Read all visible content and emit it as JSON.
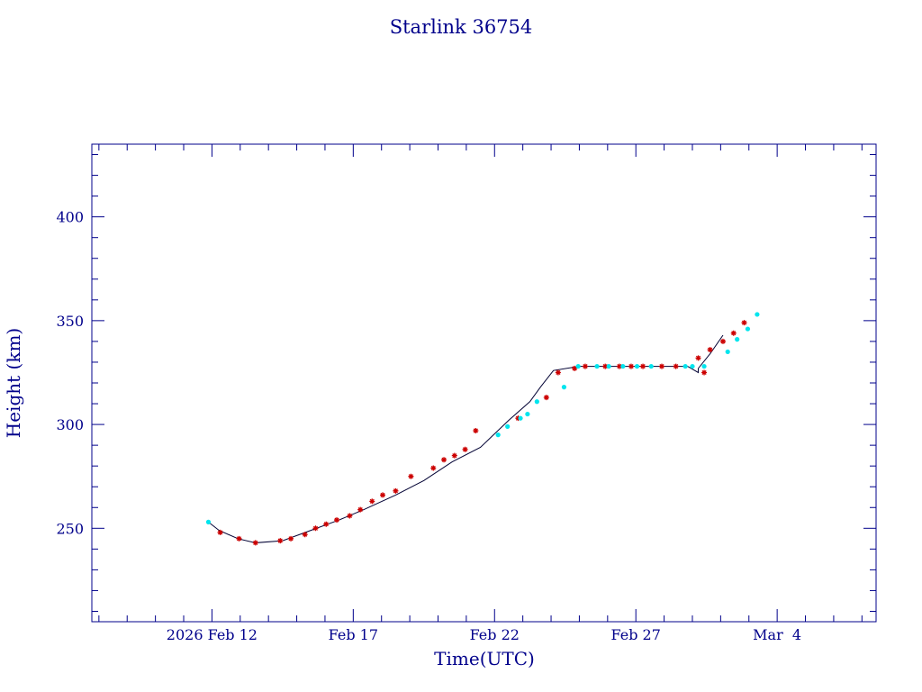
{
  "chart_data": {
    "type": "line",
    "title": "Starlink 36754",
    "xlabel": "Time(UTC)",
    "ylabel": "Height (km)",
    "x_is_date": true,
    "xlim": [
      "2026-02-07T18:00",
      "2026-03-07T12:00"
    ],
    "ylim": [
      205,
      435
    ],
    "x_tick_labels": [
      {
        "date": "2026-02-12",
        "label": "2026 Feb 12"
      },
      {
        "date": "2026-02-17",
        "label": "Feb 17"
      },
      {
        "date": "2026-02-22",
        "label": "Feb 22"
      },
      {
        "date": "2026-02-27",
        "label": "Feb 27"
      },
      {
        "date": "2026-03-04",
        "label": "Mar  4"
      }
    ],
    "y_ticks": [
      250,
      300,
      350,
      400
    ],
    "grid": false,
    "colors": {
      "axes": "#00008b",
      "line": "#000033",
      "marker_red": "#cc0000",
      "marker_cyan": "#00e5ee"
    },
    "series": [
      {
        "type": "line",
        "x": [
          "2026-02-11T21:00",
          "2026-02-12T06:00",
          "2026-02-12T22:00",
          "2026-02-13T13:00",
          "2026-02-14T12:00",
          "2026-02-15T12:00",
          "2026-02-16T12:00",
          "2026-02-17T09:00",
          "2026-02-18T12:00",
          "2026-02-19T12:00",
          "2026-02-20T12:00",
          "2026-02-21T12:00",
          "2026-02-22T12:00",
          "2026-02-23T06:00",
          "2026-02-23T15:00",
          "2026-02-24T02:00",
          "2026-02-25T00:00",
          "2026-02-26T00:00",
          "2026-02-27T00:00",
          "2026-02-28T00:00",
          "2026-02-28T20:00",
          "2026-02-29T05:00",
          "2026-03-01T05:00",
          "2026-03-01T15:00",
          "2026-03-02T02:00"
        ],
        "y": [
          253,
          249,
          245,
          243,
          244,
          249,
          254,
          259,
          266,
          273,
          282,
          289,
          302,
          311,
          318,
          326,
          328,
          328,
          328,
          328,
          328,
          325,
          327,
          334,
          343
        ]
      },
      {
        "type": "scatter",
        "marker": "red-star",
        "x": [
          "2026-02-12T07:00",
          "2026-02-12T23:00",
          "2026-02-13T13:00",
          "2026-02-14T10:00",
          "2026-02-14T19:00",
          "2026-02-15T07:00",
          "2026-02-15T16:00",
          "2026-02-16T01:00",
          "2026-02-16T10:00",
          "2026-02-16T21:00",
          "2026-02-17T06:00",
          "2026-02-17T16:00",
          "2026-02-18T01:00",
          "2026-02-18T12:00",
          "2026-02-19T01:00",
          "2026-02-19T20:00",
          "2026-02-20T05:00",
          "2026-02-20T14:00",
          "2026-02-20T23:00",
          "2026-02-21T08:00",
          "2026-02-22T20:00",
          "2026-02-23T20:00",
          "2026-02-24T06:00",
          "2026-02-24T20:00",
          "2026-02-25T05:00",
          "2026-02-25T22:00",
          "2026-02-26T10:00",
          "2026-02-26T20:00",
          "2026-02-27T06:00",
          "2026-02-27T22:00",
          "2026-02-28T10:00",
          "2026-02-29T10:00",
          "2026-03-01T05:00",
          "2026-03-01T15:00",
          "2026-03-02T02:00",
          "2026-03-02T11:00",
          "2026-03-02T20:00"
        ],
        "y": [
          248,
          245,
          243,
          244,
          245,
          247,
          250,
          252,
          254,
          256,
          259,
          263,
          266,
          268,
          275,
          279,
          283,
          285,
          288,
          297,
          303,
          313,
          325,
          327,
          328,
          328,
          328,
          328,
          328,
          328,
          328,
          325,
          332,
          336,
          340,
          344,
          349
        ]
      },
      {
        "type": "scatter",
        "marker": "cyan-dot",
        "x": [
          "2026-02-11T21:00",
          "2026-02-22T03:00",
          "2026-02-22T11:00",
          "2026-02-22T22:00",
          "2026-02-23T04:00",
          "2026-02-23T12:00",
          "2026-02-24T11:00",
          "2026-02-24T23:00",
          "2026-02-25T15:00",
          "2026-02-26T01:00",
          "2026-02-26T13:00",
          "2026-02-27T01:00",
          "2026-02-27T13:00",
          "2026-02-28T18:00",
          "2026-03-01T00:00",
          "2026-03-01T10:00",
          "2026-03-02T06:00",
          "2026-03-02T14:00",
          "2026-03-02T23:00",
          "2026-03-03T07:00"
        ],
        "y": [
          253,
          295,
          299,
          303,
          305,
          311,
          318,
          328,
          328,
          328,
          328,
          328,
          328,
          328,
          328,
          328,
          335,
          341,
          346,
          353
        ]
      }
    ]
  }
}
